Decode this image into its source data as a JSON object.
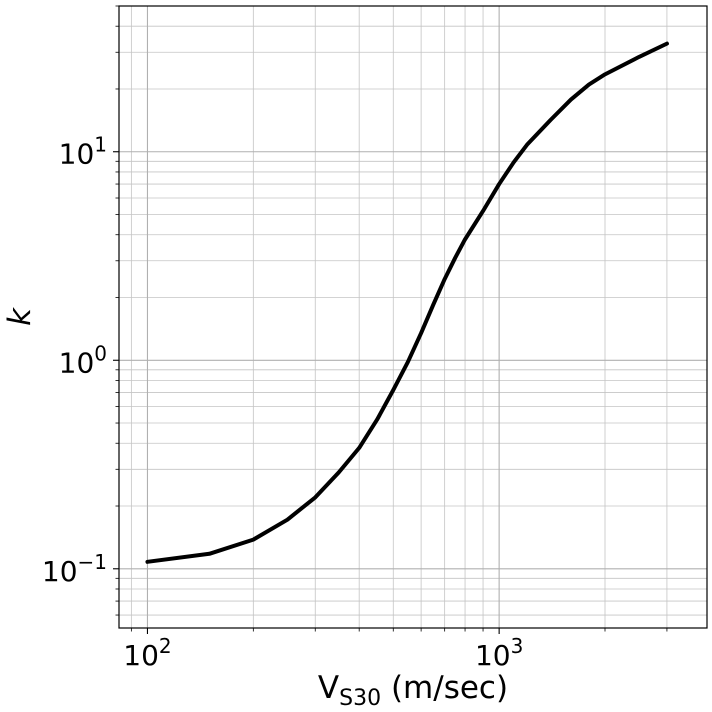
{
  "chart_data": {
    "type": "line",
    "xscale": "log",
    "yscale": "log",
    "xlim": [
      83,
      3900
    ],
    "ylim": [
      0.052,
      50
    ],
    "grid": true,
    "grid_minor": true,
    "xlabel": {
      "main": "V",
      "sub": "S30",
      "rest": " (m/sec)"
    },
    "ylabel": "k",
    "xticks": [
      {
        "value": 100,
        "base": "10",
        "exp": "2"
      },
      {
        "value": 1000,
        "base": "10",
        "exp": "3"
      }
    ],
    "yticks": [
      {
        "value": 0.1,
        "base": "10",
        "exp": "−1"
      },
      {
        "value": 1,
        "base": "10",
        "exp": "0"
      },
      {
        "value": 10,
        "base": "10",
        "exp": "1"
      }
    ],
    "series": [
      {
        "color": "#000000",
        "x": [
          100,
          150,
          200,
          250,
          300,
          350,
          400,
          450,
          500,
          550,
          600,
          650,
          700,
          750,
          800,
          900,
          1000,
          1100,
          1200,
          1400,
          1600,
          1800,
          2000,
          2500,
          3000
        ],
        "y": [
          0.108,
          0.118,
          0.138,
          0.172,
          0.22,
          0.29,
          0.38,
          0.52,
          0.72,
          0.98,
          1.35,
          1.85,
          2.45,
          3.1,
          3.8,
          5.2,
          7.0,
          8.9,
          10.8,
          14.2,
          17.8,
          21.0,
          23.5,
          28.5,
          33.0
        ]
      }
    ]
  }
}
